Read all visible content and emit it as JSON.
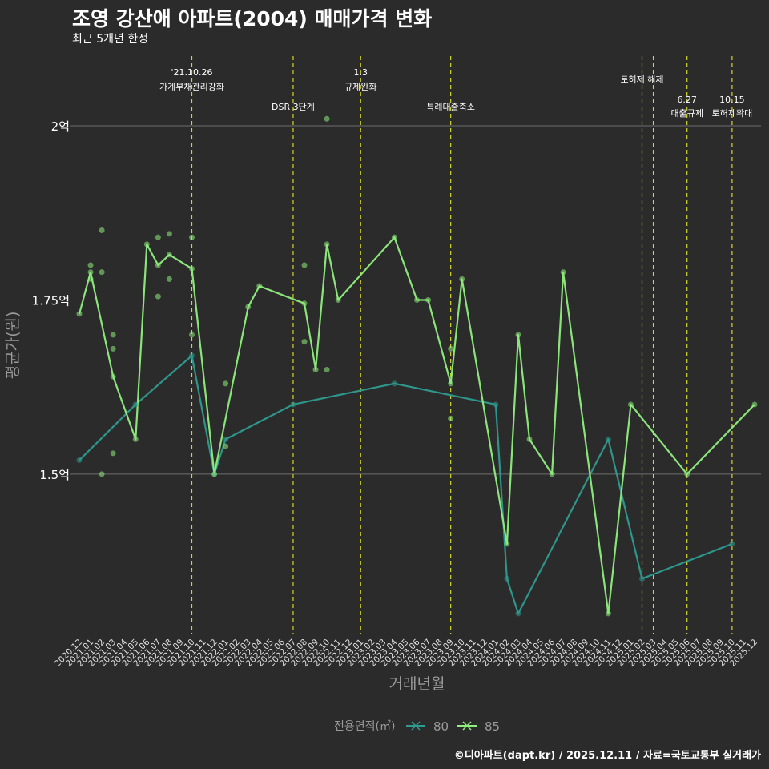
{
  "chart_data": {
    "type": "line",
    "title": "조영 강산애 아파트(2004) 매매가격 변화",
    "subtitle": "최근 5개년 한정",
    "xlabel": "거래년월",
    "ylabel": "평균가(원)",
    "caption": "©디아파트(dapt.kr) / 2025.12.11 / 자료=국토교통부 실거래가",
    "legend_title": "전용면적(㎡)",
    "y_unit": "억",
    "ylim": [
      1.27,
      2.1
    ],
    "yticks": [
      {
        "value": 1.5,
        "label": "1.5억"
      },
      {
        "value": 1.75,
        "label": "1.75억"
      },
      {
        "value": 2.0,
        "label": "2억"
      }
    ],
    "categories": [
      "2020.12",
      "2021.01",
      "2021.02",
      "2021.03",
      "2021.04",
      "2021.05",
      "2021.06",
      "2021.07",
      "2021.08",
      "2021.09",
      "2021.10",
      "2021.11",
      "2021.12",
      "2022.01",
      "2022.02",
      "2022.03",
      "2022.04",
      "2022.05",
      "2022.06",
      "2022.07",
      "2022.08",
      "2022.09",
      "2022.10",
      "2022.11",
      "2022.12",
      "2023.01",
      "2023.02",
      "2023.03",
      "2023.04",
      "2023.05",
      "2023.06",
      "2023.07",
      "2023.08",
      "2023.09",
      "2023.10",
      "2023.11",
      "2023.12",
      "2024.01",
      "2024.02",
      "2024.03",
      "2024.04",
      "2024.05",
      "2024.06",
      "2024.07",
      "2024.08",
      "2024.09",
      "2024.10",
      "2024.11",
      "2024.12",
      "2025.01",
      "2025.02",
      "2025.03",
      "2025.04",
      "2025.05",
      "2025.06",
      "2025.07",
      "2025.08",
      "2025.09",
      "2025.10",
      "2025.11",
      "2025.12"
    ],
    "xtick_labels": [
      "2020.12",
      "2021.01",
      "2021.02",
      "2021.03",
      "2021.04",
      "2021.05",
      "2021.06",
      "2021.07",
      "2021.08",
      "2021.09",
      "2021.10",
      "2021.11",
      "2021.12",
      "2022.01",
      "2022.02",
      "2022.03",
      "2022.04",
      "2022.05",
      "2022.06",
      "2022.07",
      "2022.08",
      "2022.09",
      "2022.10",
      "2022.11",
      "2022.12",
      "2023.01",
      "2023.02",
      "2023.03",
      "2023.04",
      "2023.05",
      "2023.06",
      "2023.07",
      "2023.08",
      "2023.09",
      "2023.10",
      "2023.11",
      "2023.12",
      "2024.01",
      "2024.02",
      "2024.03",
      "2024.04",
      "2024.05",
      "2024.06",
      "2024.07",
      "2024.08",
      "2024.09",
      "2024.10",
      "2024.11",
      "2024.12",
      "2025.01",
      "2025.02",
      "2025.03",
      "2025.04",
      "2025.05",
      "2025.06",
      "2025.07",
      "2025.08",
      "2025.09",
      "2025.10",
      "2025.11",
      "2025.12"
    ],
    "series": [
      {
        "name": "80",
        "color": "#2e9b8f",
        "line": [
          {
            "x": "2020.12",
            "y": 1.52
          },
          {
            "x": "2021.05",
            "y": 1.6
          },
          {
            "x": "2021.10",
            "y": 1.67
          },
          {
            "x": "2021.12",
            "y": 1.5
          },
          {
            "x": "2022.01",
            "y": 1.55
          },
          {
            "x": "2022.07",
            "y": 1.6
          },
          {
            "x": "2023.04",
            "y": 1.63
          },
          {
            "x": "2024.01",
            "y": 1.6
          },
          {
            "x": "2024.02",
            "y": 1.35
          },
          {
            "x": "2024.03",
            "y": 1.3
          },
          {
            "x": "2024.11",
            "y": 1.55
          },
          {
            "x": "2025.02",
            "y": 1.35
          },
          {
            "x": "2025.10",
            "y": 1.4
          }
        ]
      },
      {
        "name": "85",
        "color": "#90ee7e",
        "line": [
          {
            "x": "2020.12",
            "y": 1.73
          },
          {
            "x": "2021.01",
            "y": 1.79
          },
          {
            "x": "2021.03",
            "y": 1.64
          },
          {
            "x": "2021.05",
            "y": 1.55
          },
          {
            "x": "2021.06",
            "y": 1.83
          },
          {
            "x": "2021.07",
            "y": 1.8
          },
          {
            "x": "2021.08",
            "y": 1.815
          },
          {
            "x": "2021.10",
            "y": 1.795
          },
          {
            "x": "2021.12",
            "y": 1.5
          },
          {
            "x": "2022.03",
            "y": 1.74
          },
          {
            "x": "2022.04",
            "y": 1.77
          },
          {
            "x": "2022.08",
            "y": 1.745
          },
          {
            "x": "2022.09",
            "y": 1.65
          },
          {
            "x": "2022.10",
            "y": 1.83
          },
          {
            "x": "2022.11",
            "y": 1.75
          },
          {
            "x": "2023.04",
            "y": 1.84
          },
          {
            "x": "2023.06",
            "y": 1.75
          },
          {
            "x": "2023.07",
            "y": 1.75
          },
          {
            "x": "2023.09",
            "y": 1.63
          },
          {
            "x": "2023.10",
            "y": 1.78
          },
          {
            "x": "2024.02",
            "y": 1.4
          },
          {
            "x": "2024.03",
            "y": 1.7
          },
          {
            "x": "2024.04",
            "y": 1.55
          },
          {
            "x": "2024.06",
            "y": 1.5
          },
          {
            "x": "2024.07",
            "y": 1.79
          },
          {
            "x": "2024.11",
            "y": 1.3
          },
          {
            "x": "2025.01",
            "y": 1.6
          },
          {
            "x": "2025.06",
            "y": 1.5
          },
          {
            "x": "2025.12",
            "y": 1.6
          }
        ],
        "points": [
          {
            "x": "2021.01",
            "y": 1.8
          },
          {
            "x": "2021.01",
            "y": 1.78
          },
          {
            "x": "2021.02",
            "y": 1.85
          },
          {
            "x": "2021.02",
            "y": 1.79
          },
          {
            "x": "2021.02",
            "y": 1.5
          },
          {
            "x": "2021.03",
            "y": 1.7
          },
          {
            "x": "2021.03",
            "y": 1.68
          },
          {
            "x": "2021.03",
            "y": 1.53
          },
          {
            "x": "2021.07",
            "y": 1.84
          },
          {
            "x": "2021.07",
            "y": 1.755
          },
          {
            "x": "2021.08",
            "y": 1.845
          },
          {
            "x": "2021.08",
            "y": 1.78
          },
          {
            "x": "2021.10",
            "y": 1.84
          },
          {
            "x": "2021.10",
            "y": 1.7
          },
          {
            "x": "2022.01",
            "y": 1.63
          },
          {
            "x": "2022.01",
            "y": 1.54
          },
          {
            "x": "2022.08",
            "y": 1.8
          },
          {
            "x": "2022.08",
            "y": 1.69
          },
          {
            "x": "2022.10",
            "y": 2.01
          },
          {
            "x": "2022.10",
            "y": 1.65
          },
          {
            "x": "2023.09",
            "y": 1.68
          },
          {
            "x": "2023.09",
            "y": 1.58
          }
        ]
      }
    ],
    "events": [
      {
        "x": "2021.10",
        "lines": [
          "'21.10.26",
          "가계부채관리강화"
        ],
        "row": 1
      },
      {
        "x": "2022.07",
        "lines": [
          "DSR 3단계"
        ],
        "row": 3
      },
      {
        "x": "2023.01",
        "lines": [
          "1.3",
          "규제완화"
        ],
        "row": 1
      },
      {
        "x": "2023.09",
        "lines": [
          "특례대출축소"
        ],
        "row": 3
      },
      {
        "x": "2025.02",
        "lines": [
          "토허제 해제"
        ],
        "row": 2
      },
      {
        "x": "2025.03",
        "lines": [],
        "row": 2
      },
      {
        "x": "2025.06",
        "lines": [
          "6.27",
          "대출규제"
        ],
        "row": 4
      },
      {
        "x": "2025.10",
        "lines": [
          "10.15",
          "토허제확대"
        ],
        "row": 4
      }
    ],
    "event_line_color": "#d4d42a",
    "grid_color": "#6e6e6e"
  }
}
